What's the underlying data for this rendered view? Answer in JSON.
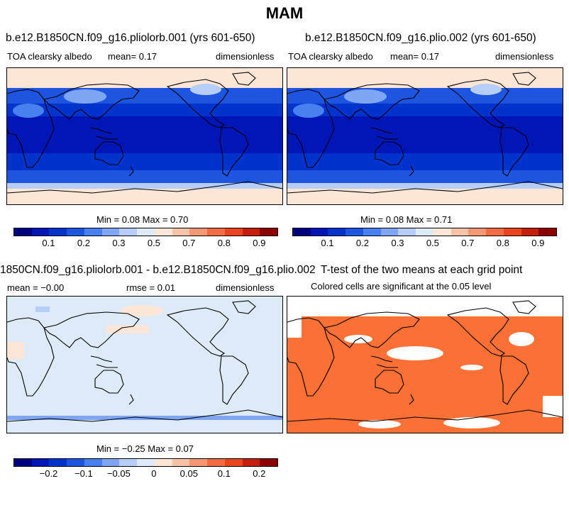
{
  "title": "MAM",
  "colors": {
    "albedo": [
      "#00007f",
      "#0015b5",
      "#0033cc",
      "#1d55e0",
      "#4880f0",
      "#7fa6f5",
      "#b5cdf7",
      "#ddebf8",
      "#fde6d6",
      "#f7c3a4",
      "#f59773",
      "#f26b43",
      "#e9441d",
      "#c51e0a",
      "#8c0000"
    ],
    "diff": [
      "#00007f",
      "#0015b5",
      "#0033cc",
      "#1d55e0",
      "#4880f0",
      "#7fa6f5",
      "#b5cdf7",
      "#ddebf8",
      "#fde6d6",
      "#f7c3a4",
      "#f59773",
      "#f26b43",
      "#e9441d",
      "#c51e0a",
      "#8c0000"
    ],
    "ttest": "#fb7035"
  },
  "panels": [
    {
      "title": "b.e12.B1850CN.f09_g16.pliolorb.001 (yrs 601-650)",
      "left": "TOA clearsky albedo",
      "mean": "mean=    0.17",
      "right": "dimensionless",
      "minmax": "Min =   0.08 Max =   0.70",
      "ticks": [
        "0.1",
        "0.2",
        "0.3",
        "0.5",
        "0.7",
        "0.8",
        "0.9"
      ]
    },
    {
      "title": "b.e12.B1850CN.f09_g16.plio.002 (yrs 601-650)",
      "left": "TOA clearsky albedo",
      "mean": "mean=    0.17",
      "right": "dimensionless",
      "minmax": "Min =   0.08 Max =   0.71",
      "ticks": [
        "0.1",
        "0.2",
        "0.3",
        "0.5",
        "0.7",
        "0.8",
        "0.9"
      ]
    },
    {
      "title": "1850CN.f09_g16.pliolorb.001 - b.e12.B1850CN.f09_g16.plio.002",
      "left": "mean =  −0.00",
      "mean": "rmse =    0.01",
      "right": "dimensionless",
      "minmax": "Min =  −0.25 Max =   0.07",
      "ticks": [
        "−0.2",
        "−0.1",
        "−0.05",
        "0",
        "0.05",
        "0.1",
        "0.2"
      ]
    },
    {
      "title": "T-test of the two means at each grid point",
      "sub": "Colored cells are significant at the 0.05 level"
    }
  ]
}
